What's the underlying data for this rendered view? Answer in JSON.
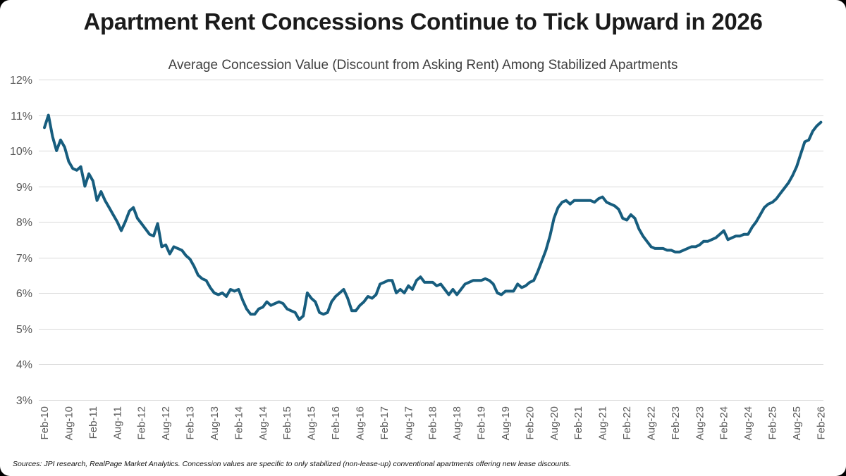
{
  "title": "Apartment Rent Concessions Continue to Tick Upward in 2026",
  "subtitle": "Average Concession Value (Discount from Asking Rent) Among Stabilized Apartments",
  "source_note": "Sources: JPI research, RealPage Market Analytics. Concession values are specific to only stabilized (non-lease-up) conventional apartments offering new lease discounts.",
  "chart_data": {
    "type": "line",
    "title": "Apartment Rent Concessions Continue to Tick Upward in 2026",
    "subtitle": "Average Concession Value (Discount from Asking Rent) Among Stabilized Apartments",
    "xlabel": "",
    "ylabel": "",
    "ylim": [
      3,
      12
    ],
    "y_tick_labels": [
      "12%",
      "11%",
      "10%",
      "9%",
      "8%",
      "7%",
      "6%",
      "5%",
      "4%",
      "3%"
    ],
    "x_tick_labels": [
      "Feb-10",
      "Aug-10",
      "Feb-11",
      "Aug-11",
      "Feb-12",
      "Aug-12",
      "Feb-13",
      "Aug-13",
      "Feb-14",
      "Aug-14",
      "Feb-15",
      "Aug-15",
      "Feb-16",
      "Aug-16",
      "Feb-17",
      "Aug-17",
      "Feb-18",
      "Aug-18",
      "Feb-19",
      "Aug-19",
      "Feb-20",
      "Aug-20",
      "Feb-21",
      "Aug-21",
      "Feb-22",
      "Aug-22",
      "Feb-23",
      "Aug-23",
      "Feb-24",
      "Aug-24",
      "Feb-25",
      "Aug-25",
      "Feb-26"
    ],
    "x_start": "Feb-2010",
    "x_end": "Feb-2026",
    "x_interval": "monthly",
    "months_per_tick": 6,
    "grid": "horizontal",
    "legend": "none",
    "gridline_color": "#D9D9D9",
    "series": [
      {
        "name": "Average Concession Value (Discount from Asking Rent)",
        "color": "#175D7E",
        "unit": "percent",
        "values": [
          10.65,
          11.0,
          10.4,
          10.0,
          10.3,
          10.1,
          9.7,
          9.5,
          9.45,
          9.55,
          9.0,
          9.35,
          9.15,
          8.6,
          8.85,
          8.6,
          8.4,
          8.2,
          8.0,
          7.75,
          8.0,
          8.3,
          8.4,
          8.1,
          7.95,
          7.8,
          7.65,
          7.6,
          7.95,
          7.3,
          7.35,
          7.1,
          7.3,
          7.25,
          7.2,
          7.05,
          6.95,
          6.75,
          6.5,
          6.4,
          6.35,
          6.15,
          6.0,
          5.95,
          6.0,
          5.9,
          6.1,
          6.05,
          6.1,
          5.8,
          5.55,
          5.4,
          5.4,
          5.55,
          5.6,
          5.75,
          5.65,
          5.7,
          5.75,
          5.7,
          5.55,
          5.5,
          5.45,
          5.25,
          5.35,
          6.0,
          5.85,
          5.75,
          5.45,
          5.4,
          5.45,
          5.75,
          5.9,
          6.0,
          6.1,
          5.85,
          5.5,
          5.5,
          5.65,
          5.75,
          5.9,
          5.85,
          5.95,
          6.25,
          6.3,
          6.35,
          6.35,
          6.0,
          6.1,
          6.0,
          6.2,
          6.1,
          6.35,
          6.45,
          6.3,
          6.3,
          6.3,
          6.2,
          6.25,
          6.1,
          5.95,
          6.1,
          5.95,
          6.1,
          6.25,
          6.3,
          6.35,
          6.35,
          6.35,
          6.4,
          6.35,
          6.25,
          6.0,
          5.95,
          6.05,
          6.05,
          6.05,
          6.25,
          6.15,
          6.2,
          6.3,
          6.35,
          6.6,
          6.9,
          7.2,
          7.6,
          8.1,
          8.4,
          8.55,
          8.6,
          8.5,
          8.6,
          8.6,
          8.6,
          8.6,
          8.6,
          8.55,
          8.65,
          8.7,
          8.55,
          8.5,
          8.45,
          8.35,
          8.1,
          8.05,
          8.2,
          8.1,
          7.8,
          7.6,
          7.45,
          7.3,
          7.25,
          7.25,
          7.25,
          7.2,
          7.2,
          7.15,
          7.15,
          7.2,
          7.25,
          7.3,
          7.3,
          7.35,
          7.45,
          7.45,
          7.5,
          7.55,
          7.65,
          7.75,
          7.5,
          7.55,
          7.6,
          7.6,
          7.65,
          7.65,
          7.85,
          8.0,
          8.2,
          8.4,
          8.5,
          8.55,
          8.65,
          8.8,
          8.95,
          9.1,
          9.3,
          9.55,
          9.9,
          10.25,
          10.3,
          10.55,
          10.7,
          10.8
        ]
      }
    ]
  }
}
